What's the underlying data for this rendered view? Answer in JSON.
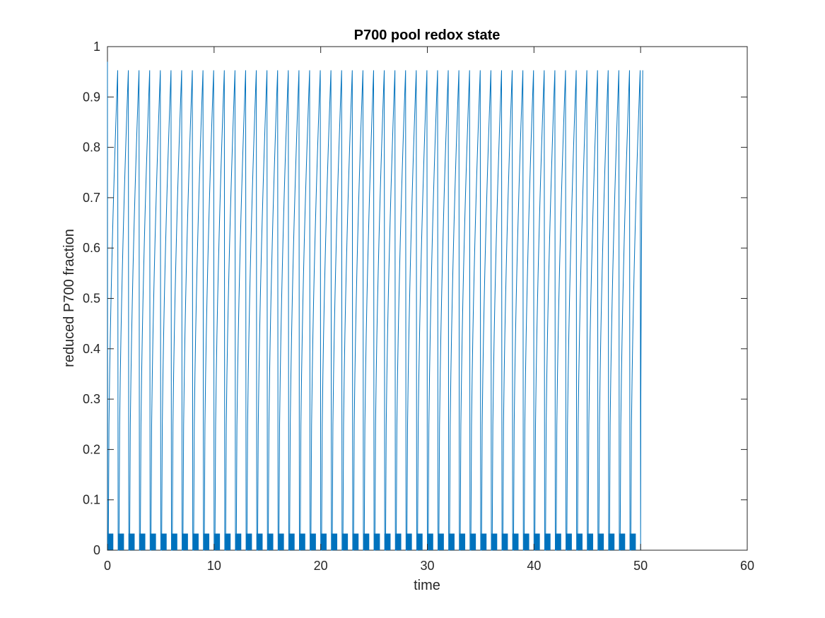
{
  "chart_data": {
    "type": "line",
    "title": "P700 pool redox state",
    "xlabel": "time",
    "ylabel": "reduced P700 fraction",
    "xlim": [
      0,
      60
    ],
    "ylim": [
      0,
      1
    ],
    "xticks": [
      0,
      10,
      20,
      30,
      40,
      50,
      60
    ],
    "yticks": [
      0,
      0.1,
      0.2,
      0.3,
      0.4,
      0.5,
      0.6,
      0.7,
      0.8,
      0.9,
      1
    ],
    "xtick_labels": [
      "0",
      "10",
      "20",
      "30",
      "40",
      "50",
      "60"
    ],
    "ytick_labels": [
      "0",
      "0.1",
      "0.2",
      "0.3",
      "0.4",
      "0.5",
      "0.6",
      "0.7",
      "0.8",
      "0.9",
      "1"
    ],
    "grid": false,
    "legend": "none",
    "series": [
      {
        "color": "#0072BD",
        "description_values": {
          "start": {
            "x": 0,
            "y": 0.97
          },
          "period": 1,
          "cycles": 50,
          "peak": 0.953,
          "trough": 0.0,
          "dense_band_upper": 0.033,
          "end_x": 50.2
        }
      }
    ]
  }
}
